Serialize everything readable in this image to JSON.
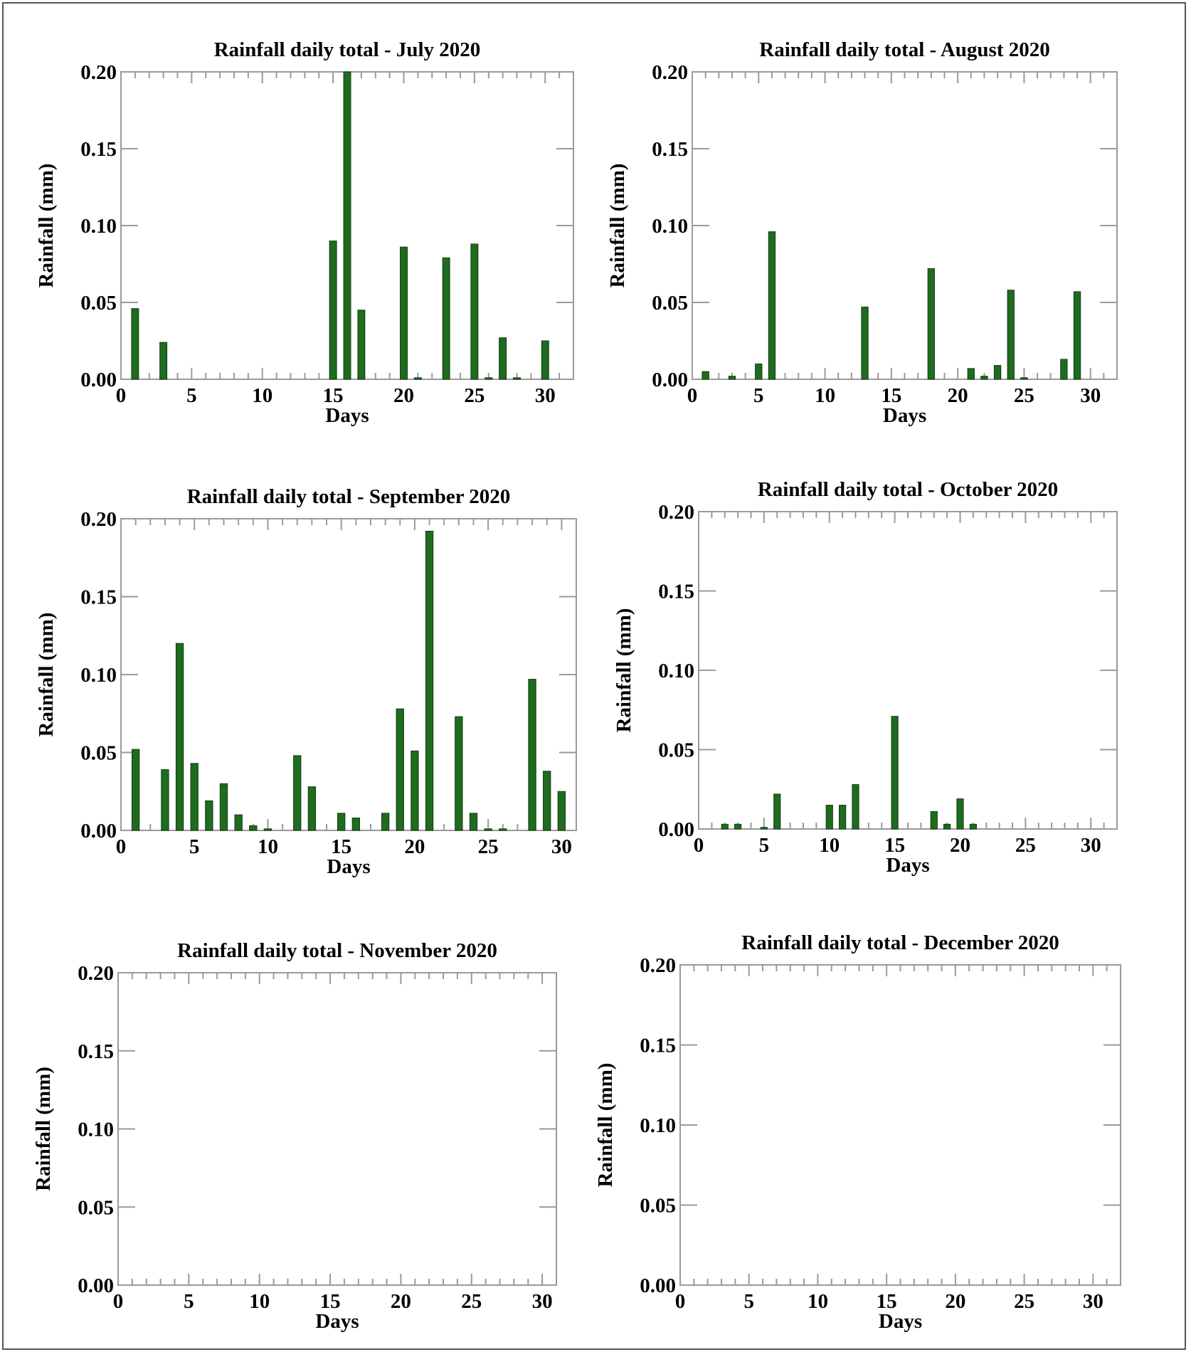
{
  "chart_data": [
    {
      "type": "bar",
      "title": "Rainfall daily total - July 2020",
      "xlabel": "Days",
      "ylabel": "Rainfall (mm)",
      "xlim": [
        0,
        32
      ],
      "ylim": [
        0,
        0.2
      ],
      "xticks": [
        0,
        5,
        10,
        15,
        20,
        25,
        30
      ],
      "yticks": [
        "0.00",
        "0.05",
        "0.10",
        "0.15",
        "0.20"
      ],
      "bar_color": "#1f6b1f",
      "x": [
        1,
        3,
        15,
        16,
        17,
        20,
        21,
        23,
        25,
        26,
        27,
        28,
        30
      ],
      "values": [
        0.046,
        0.024,
        0.09,
        0.2,
        0.045,
        0.086,
        0.001,
        0.079,
        0.088,
        0.001,
        0.027,
        0.001,
        0.025
      ]
    },
    {
      "type": "bar",
      "title": "Rainfall daily total - August 2020",
      "xlabel": "Days",
      "ylabel": "Rainfall (mm)",
      "xlim": [
        0,
        32
      ],
      "ylim": [
        0,
        0.2
      ],
      "xticks": [
        0,
        5,
        10,
        15,
        20,
        25,
        30
      ],
      "yticks": [
        "0.00",
        "0.05",
        "0.10",
        "0.15",
        "0.20"
      ],
      "bar_color": "#1f6b1f",
      "x": [
        1,
        3,
        5,
        6,
        13,
        18,
        21,
        22,
        23,
        24,
        25,
        28,
        29
      ],
      "values": [
        0.005,
        0.002,
        0.01,
        0.096,
        0.047,
        0.072,
        0.007,
        0.002,
        0.009,
        0.058,
        0.001,
        0.013,
        0.057
      ]
    },
    {
      "type": "bar",
      "title": "Rainfall daily total - September 2020",
      "xlabel": "Days",
      "ylabel": "Rainfall (mm)",
      "xlim": [
        0,
        31
      ],
      "ylim": [
        0,
        0.2
      ],
      "xticks": [
        0,
        5,
        10,
        15,
        20,
        25,
        30
      ],
      "yticks": [
        "0.00",
        "0.05",
        "0.10",
        "0.15",
        "0.20"
      ],
      "bar_color": "#1f6b1f",
      "x": [
        1,
        3,
        4,
        5,
        6,
        7,
        8,
        9,
        10,
        12,
        13,
        15,
        16,
        18,
        19,
        20,
        21,
        23,
        24,
        25,
        26,
        28,
        29,
        30
      ],
      "values": [
        0.052,
        0.039,
        0.12,
        0.043,
        0.019,
        0.03,
        0.01,
        0.003,
        0.001,
        0.048,
        0.028,
        0.011,
        0.008,
        0.011,
        0.078,
        0.051,
        0.192,
        0.073,
        0.011,
        0.001,
        0.001,
        0.097,
        0.038,
        0.025
      ]
    },
    {
      "type": "bar",
      "title": "Rainfall daily total - October 2020",
      "xlabel": "Days",
      "ylabel": "Rainfall (mm)",
      "xlim": [
        0,
        32
      ],
      "ylim": [
        0,
        0.2
      ],
      "xticks": [
        0,
        5,
        10,
        15,
        20,
        25,
        30
      ],
      "yticks": [
        "0.00",
        "0.05",
        "0.10",
        "0.15",
        "0.20"
      ],
      "bar_color": "#1f6b1f",
      "x": [
        2,
        3,
        5,
        6,
        10,
        11,
        12,
        15,
        18,
        19,
        20,
        21
      ],
      "values": [
        0.003,
        0.003,
        0.001,
        0.022,
        0.015,
        0.015,
        0.028,
        0.071,
        0.011,
        0.003,
        0.019,
        0.003
      ]
    },
    {
      "type": "bar",
      "title": "Rainfall daily total - November 2020",
      "xlabel": "Days",
      "ylabel": "Rainfall (mm)",
      "xlim": [
        0,
        31
      ],
      "ylim": [
        0,
        0.2
      ],
      "xticks": [
        0,
        5,
        10,
        15,
        20,
        25,
        30
      ],
      "yticks": [
        "0.00",
        "0.05",
        "0.10",
        "0.15",
        "0.20"
      ],
      "bar_color": "#1f6b1f",
      "x": [],
      "values": []
    },
    {
      "type": "bar",
      "title": "Rainfall daily total - December 2020",
      "xlabel": "Days",
      "ylabel": "Rainfall (mm)",
      "xlim": [
        0,
        32
      ],
      "ylim": [
        0,
        0.2
      ],
      "xticks": [
        0,
        5,
        10,
        15,
        20,
        25,
        30
      ],
      "yticks": [
        "0.00",
        "0.05",
        "0.10",
        "0.15",
        "0.20"
      ],
      "bar_color": "#1f6b1f",
      "x": [],
      "values": []
    }
  ]
}
